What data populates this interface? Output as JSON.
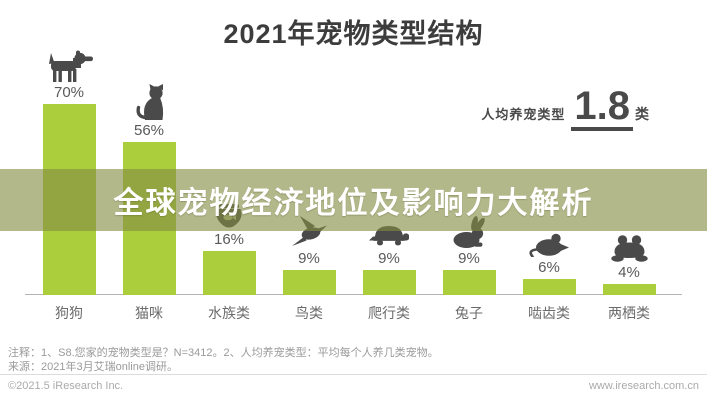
{
  "title": "2021年宠物类型结构",
  "banner": {
    "text": "全球宠物经济地位及影响力大解析"
  },
  "stat": {
    "label": "人均养宠类型",
    "value": "1.8",
    "unit": "类"
  },
  "chart_data": {
    "type": "bar",
    "title": "2021年宠物类型结构",
    "categories": [
      "狗狗",
      "猫咪",
      "水族类",
      "鸟类",
      "爬行类",
      "兔子",
      "啮齿类",
      "两栖类"
    ],
    "values": [
      70,
      56,
      16,
      9,
      9,
      9,
      6,
      4
    ],
    "value_labels": [
      "70%",
      "56%",
      "16%",
      "9%",
      "9%",
      "9%",
      "6%",
      "4%"
    ],
    "icons": [
      "dog",
      "cat",
      "fishbowl",
      "bird",
      "turtle",
      "rabbit",
      "mouse",
      "frog"
    ],
    "xlabel": "",
    "ylabel": "",
    "ylim": [
      0,
      75
    ],
    "grid": false,
    "legend": "none"
  },
  "notes": {
    "line1": "注释：1、S8.您家的宠物类型是？N=3412。2、人均养宠类型：平均每个人养几类宠物。",
    "line2": "来源：2021年3月艾瑞online调研。"
  },
  "footer": {
    "left": "©2021.5 iResearch Inc.",
    "right": "www.iresearch.com.cn"
  },
  "colors": {
    "bar": "#aace3c",
    "banner": "rgba(133,140,68,0.62)",
    "icon": "#4a4a4a",
    "title_text": "#3c3c3c",
    "banner_text": "#ffffff"
  }
}
